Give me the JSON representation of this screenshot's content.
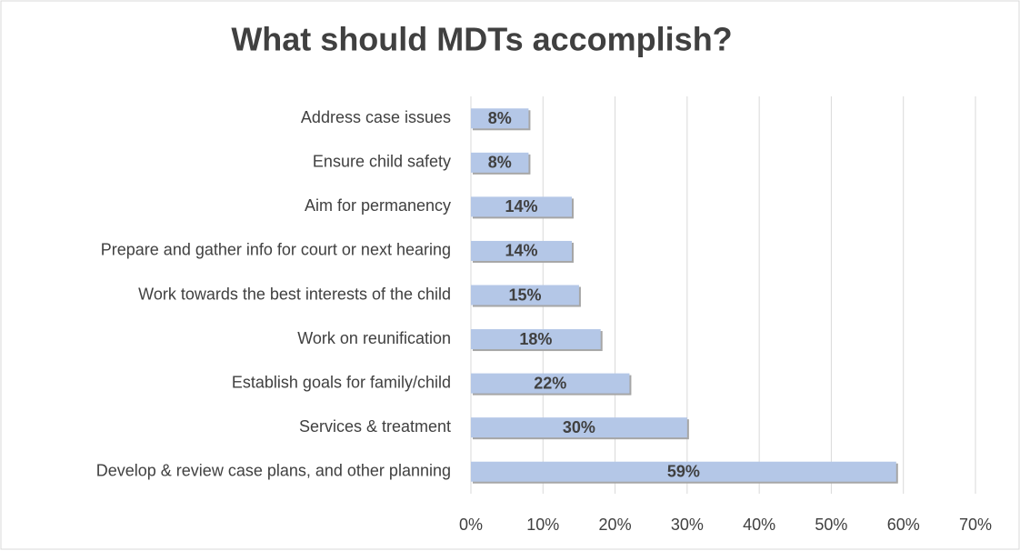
{
  "chart_data": {
    "type": "bar",
    "orientation": "horizontal",
    "title": "What should MDTs accomplish?",
    "categories": [
      "Address case issues",
      "Ensure child safety",
      "Aim for permanency",
      "Prepare and gather info for court or next hearing",
      "Work towards the best interests of the child",
      "Work on reunification",
      "Establish goals for family/child",
      "Services & treatment",
      "Develop & review case plans, and other planning"
    ],
    "values": [
      8,
      8,
      14,
      14,
      15,
      18,
      22,
      30,
      59
    ],
    "value_labels": [
      "8%",
      "8%",
      "14%",
      "14%",
      "15%",
      "18%",
      "22%",
      "30%",
      "59%"
    ],
    "color": "#b4c7e7",
    "xlim": [
      0,
      70
    ],
    "xticks": [
      {
        "value": 0,
        "label": "0%"
      },
      {
        "value": 10,
        "label": "10%"
      },
      {
        "value": 20,
        "label": "20%"
      },
      {
        "value": 30,
        "label": "30%"
      },
      {
        "value": 40,
        "label": "40%"
      },
      {
        "value": 50,
        "label": "50%"
      },
      {
        "value": 60,
        "label": "60%"
      },
      {
        "value": 70,
        "label": "70%"
      }
    ],
    "grid": true
  }
}
